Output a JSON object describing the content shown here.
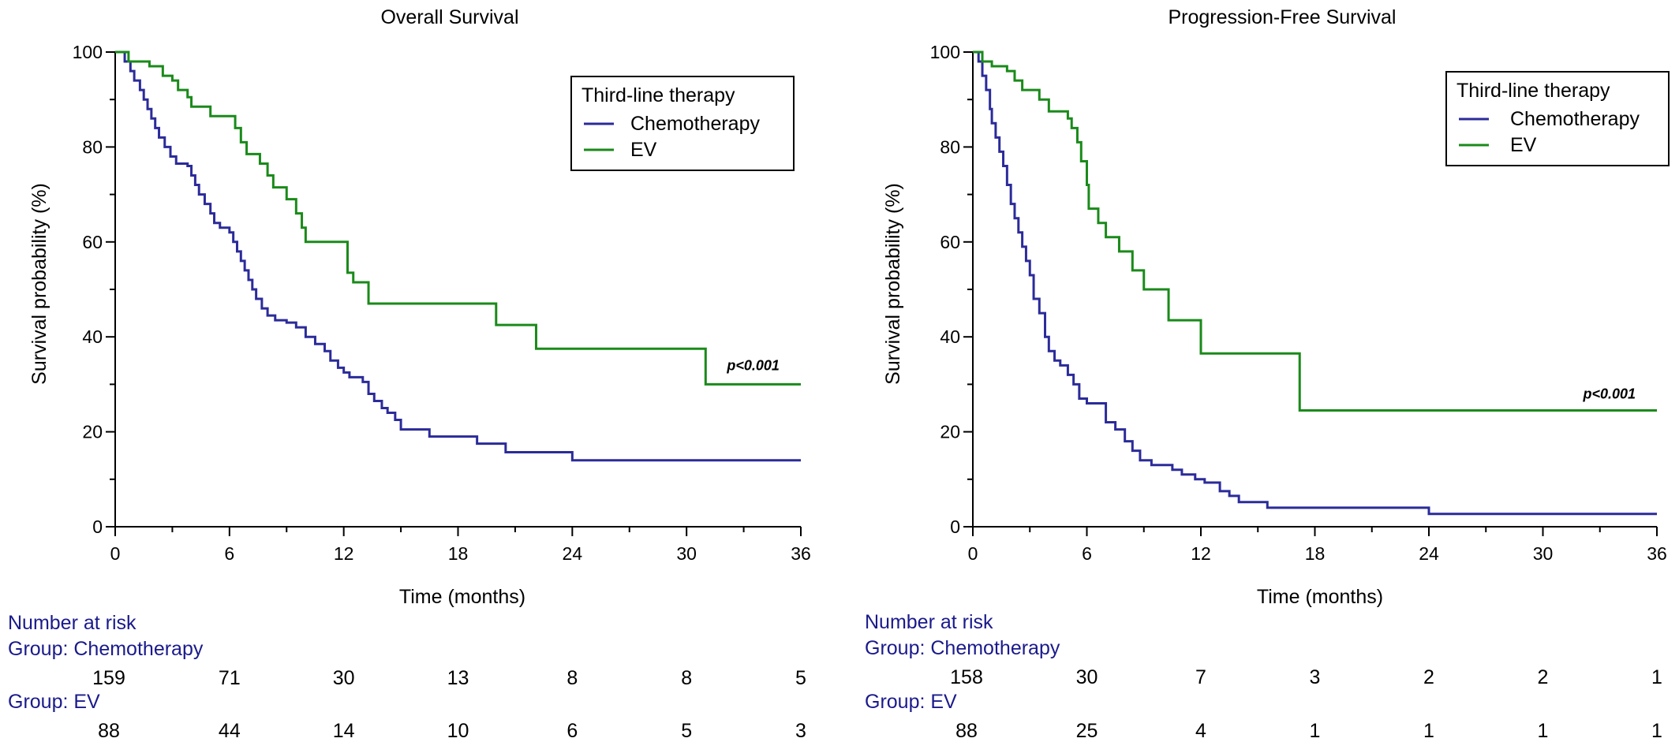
{
  "colors": {
    "chemotherapy": "#2b2b9a",
    "ev": "#1a8a1a",
    "axis": "#000000",
    "risk_text": "#1a1a8c"
  },
  "chart_data": [
    {
      "type": "line",
      "title": "Overall Survival",
      "xlabel": "Time (months)",
      "ylabel": "Survival probability (%)",
      "xlim": [
        0,
        36
      ],
      "ylim": [
        0,
        100
      ],
      "xticks": [
        0,
        6,
        12,
        18,
        24,
        30,
        36
      ],
      "yticks": [
        0,
        20,
        40,
        60,
        80,
        100
      ],
      "legend": {
        "title": "Third-line therapy",
        "entries": [
          "Chemotherapy",
          "EV"
        ],
        "placement": "top-right"
      },
      "annotation": "p<0.001",
      "annotation_x": 33.5,
      "annotation_y": 33,
      "series": [
        {
          "name": "Chemotherapy",
          "color_key": "chemotherapy",
          "steps": [
            [
              0,
              100
            ],
            [
              0.5,
              98
            ],
            [
              0.8,
              96
            ],
            [
              1,
              94
            ],
            [
              1.3,
              92
            ],
            [
              1.5,
              90
            ],
            [
              1.7,
              88
            ],
            [
              1.9,
              86
            ],
            [
              2.1,
              84
            ],
            [
              2.3,
              82
            ],
            [
              2.6,
              80
            ],
            [
              2.9,
              78
            ],
            [
              3.2,
              76.5
            ],
            [
              3.8,
              76
            ],
            [
              4,
              74
            ],
            [
              4.2,
              72
            ],
            [
              4.4,
              70
            ],
            [
              4.7,
              68
            ],
            [
              5,
              66
            ],
            [
              5.2,
              64
            ],
            [
              5.5,
              63
            ],
            [
              6,
              62
            ],
            [
              6.2,
              60
            ],
            [
              6.4,
              58
            ],
            [
              6.6,
              56
            ],
            [
              6.8,
              54
            ],
            [
              7,
              52
            ],
            [
              7.2,
              50
            ],
            [
              7.4,
              48
            ],
            [
              7.7,
              46
            ],
            [
              8,
              44.5
            ],
            [
              8.4,
              43.5
            ],
            [
              9,
              43
            ],
            [
              9.5,
              42
            ],
            [
              10,
              40
            ],
            [
              10.5,
              38.5
            ],
            [
              11,
              37
            ],
            [
              11.3,
              35
            ],
            [
              11.7,
              33.5
            ],
            [
              12,
              32.5
            ],
            [
              12.3,
              31.5
            ],
            [
              13,
              30.5
            ],
            [
              13.3,
              28
            ],
            [
              13.6,
              26.5
            ],
            [
              14,
              25
            ],
            [
              14.3,
              24
            ],
            [
              14.7,
              22.5
            ],
            [
              15,
              20.5
            ],
            [
              16.5,
              19
            ],
            [
              19,
              17.5
            ],
            [
              20.5,
              15.7
            ],
            [
              24,
              14
            ],
            [
              36,
              14
            ]
          ]
        },
        {
          "name": "EV",
          "color_key": "ev",
          "steps": [
            [
              0,
              100
            ],
            [
              0.7,
              98
            ],
            [
              1.8,
              97
            ],
            [
              2.5,
              95
            ],
            [
              3,
              94
            ],
            [
              3.3,
              92
            ],
            [
              3.8,
              90.5
            ],
            [
              4,
              88.5
            ],
            [
              5,
              86.5
            ],
            [
              6,
              86.5
            ],
            [
              6.3,
              84
            ],
            [
              6.6,
              81
            ],
            [
              6.9,
              78.5
            ],
            [
              7.6,
              76.5
            ],
            [
              8,
              74
            ],
            [
              8.3,
              71.5
            ],
            [
              9,
              69
            ],
            [
              9.5,
              66
            ],
            [
              9.8,
              63
            ],
            [
              10,
              60
            ],
            [
              12,
              60
            ],
            [
              12.2,
              53.5
            ],
            [
              12.5,
              51.5
            ],
            [
              13.3,
              47
            ],
            [
              20,
              47
            ],
            [
              20,
              42.5
            ],
            [
              22.1,
              42.5
            ],
            [
              22.1,
              37.5
            ],
            [
              31,
              37.5
            ],
            [
              31,
              30
            ],
            [
              36,
              30
            ]
          ]
        }
      ],
      "risk_table": {
        "heading": "Number at risk",
        "groups": [
          {
            "label": "Group: Chemotherapy",
            "values": [
              "159",
              "71",
              "30",
              "13",
              "8",
              "8",
              "5"
            ]
          },
          {
            "label": "Group: EV",
            "values": [
              "88",
              "44",
              "14",
              "10",
              "6",
              "5",
              "3"
            ]
          }
        ]
      }
    },
    {
      "type": "line",
      "title": "Progression-Free Survival",
      "xlabel": "Time (months)",
      "ylabel": "Survival probability (%)",
      "xlim": [
        0,
        36
      ],
      "ylim": [
        0,
        100
      ],
      "xticks": [
        0,
        6,
        12,
        18,
        24,
        30,
        36
      ],
      "yticks": [
        0,
        20,
        40,
        60,
        80,
        100
      ],
      "legend": {
        "title": "Third-line therapy",
        "entries": [
          "Chemotherapy",
          "EV"
        ],
        "placement": "top-right"
      },
      "annotation": "p<0.001",
      "annotation_x": 33.5,
      "annotation_y": 27,
      "series": [
        {
          "name": "Chemotherapy",
          "color_key": "chemotherapy",
          "steps": [
            [
              0,
              100
            ],
            [
              0.3,
              98
            ],
            [
              0.5,
              95
            ],
            [
              0.7,
              92
            ],
            [
              0.9,
              88
            ],
            [
              1,
              85
            ],
            [
              1.2,
              82
            ],
            [
              1.4,
              79
            ],
            [
              1.6,
              76
            ],
            [
              1.8,
              72
            ],
            [
              2,
              68
            ],
            [
              2.2,
              65
            ],
            [
              2.4,
              62
            ],
            [
              2.6,
              59
            ],
            [
              2.8,
              56
            ],
            [
              3,
              53
            ],
            [
              3.2,
              48
            ],
            [
              3.5,
              45
            ],
            [
              3.8,
              40
            ],
            [
              4,
              37
            ],
            [
              4.3,
              35
            ],
            [
              4.6,
              34
            ],
            [
              5,
              32
            ],
            [
              5.3,
              30
            ],
            [
              5.6,
              27
            ],
            [
              6,
              26
            ],
            [
              7,
              22
            ],
            [
              7.5,
              20.5
            ],
            [
              8,
              18
            ],
            [
              8.4,
              16
            ],
            [
              8.8,
              14
            ],
            [
              9.4,
              13
            ],
            [
              10.5,
              12
            ],
            [
              11,
              11
            ],
            [
              11.7,
              10
            ],
            [
              12.2,
              9.3
            ],
            [
              13,
              7.5
            ],
            [
              13.5,
              6.5
            ],
            [
              14,
              5.2
            ],
            [
              15.5,
              4
            ],
            [
              24,
              2.7
            ],
            [
              36,
              2.7
            ]
          ]
        },
        {
          "name": "EV",
          "color_key": "ev",
          "steps": [
            [
              0,
              100
            ],
            [
              0.5,
              98
            ],
            [
              1,
              97
            ],
            [
              1.8,
              96
            ],
            [
              2.2,
              94
            ],
            [
              2.6,
              92
            ],
            [
              3.5,
              90
            ],
            [
              4,
              87.5
            ],
            [
              5,
              86
            ],
            [
              5.2,
              84
            ],
            [
              5.5,
              81
            ],
            [
              5.7,
              77
            ],
            [
              6,
              72
            ],
            [
              6.1,
              67
            ],
            [
              6.6,
              64
            ],
            [
              7,
              61
            ],
            [
              7.7,
              58
            ],
            [
              8.4,
              54
            ],
            [
              9,
              50
            ],
            [
              10.3,
              50
            ],
            [
              10.3,
              43.5
            ],
            [
              12,
              43.5
            ],
            [
              12,
              36.5
            ],
            [
              17.2,
              36.5
            ],
            [
              17.2,
              24.5
            ],
            [
              36,
              24.5
            ]
          ]
        }
      ],
      "risk_table": {
        "heading": "Number at risk",
        "groups": [
          {
            "label": "Group: Chemotherapy",
            "values": [
              "158",
              "30",
              "7",
              "3",
              "2",
              "2",
              "1"
            ]
          },
          {
            "label": "Group: EV",
            "values": [
              "88",
              "25",
              "4",
              "1",
              "1",
              "1",
              "1"
            ]
          }
        ]
      }
    }
  ]
}
